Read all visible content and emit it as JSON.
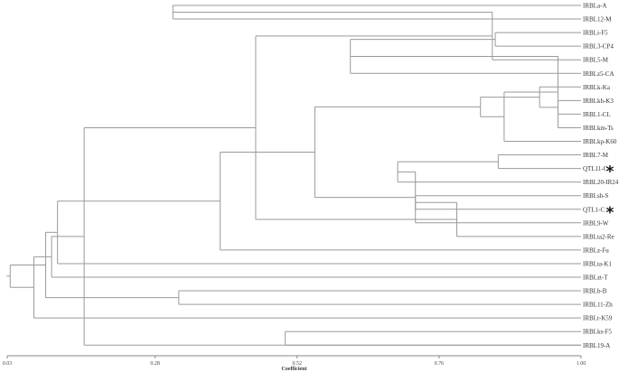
{
  "leaves": [
    "IRBLa-A",
    "IRBL12-M",
    "IRBLi-F5",
    "IRBL3-CP4",
    "IRBL5-M",
    "IRBLz5-CA",
    "IRBLk-Ka",
    "IRBLkh-K3",
    "IRBL1-CL",
    "IRBLkm-Ts",
    "IRBLkp-K60",
    "IRBL7-M",
    "QTL11-C",
    "IRBL20-IR24",
    "IRBLsh-S",
    "QTL1-C",
    "IRBL9-W",
    "IRBLta2-Re",
    "IRBLz-Fu",
    "IRBLta-K1",
    "IRBLzt-T",
    "IRBLb-B",
    "IRBL11-Zh",
    "IRBLt-K59",
    "IRBLks-F5",
    "IRBL19-A"
  ],
  "merges": [
    {
      "a": 0,
      "b": 1,
      "height": 0.31
    },
    {
      "a": 2,
      "b": 3,
      "height": 0.855
    },
    {
      "a": 26,
      "b": 4,
      "height": 0.85
    },
    {
      "a": 27,
      "b": 5,
      "height": 0.61
    },
    {
      "a": 7,
      "b": 8,
      "height": 0.961
    },
    {
      "a": 29,
      "b": 9,
      "height": 0.961
    },
    {
      "a": 6,
      "b": 30,
      "height": 0.93
    },
    {
      "a": 31,
      "b": 10,
      "height": 0.87
    },
    {
      "a": 11,
      "b": 12,
      "height": 0.86
    },
    {
      "a": 32,
      "b": 33,
      "height": 0.83
    },
    {
      "a": 34,
      "b": 13,
      "height": 0.69
    },
    {
      "a": 14,
      "b": 15,
      "height": 0.72
    },
    {
      "a": 36,
      "b": 16,
      "height": 0.72
    },
    {
      "a": 17,
      "b": 37,
      "height": 0.79
    },
    {
      "a": 35,
      "b": 38,
      "height": 0.55
    },
    {
      "a": 28,
      "b": 39,
      "height": 0.45
    },
    {
      "a": 40,
      "b": 18,
      "height": 0.39
    },
    {
      "a": 25,
      "b": 41,
      "height": 0.16
    },
    {
      "a": 42,
      "b": 19,
      "height": 0.115
    },
    {
      "a": 43,
      "b": 20,
      "height": 0.105
    },
    {
      "a": 21,
      "b": 22,
      "height": 0.32
    },
    {
      "a": 45,
      "b": 23,
      "height": 0.075
    },
    {
      "a": 44,
      "b": 46,
      "height": 0.095
    },
    {
      "a": 24,
      "b": 25,
      "height": 0.5
    },
    {
      "a": 47,
      "b": 48,
      "height": 0.035
    }
  ],
  "markers": [
    {
      "leaf": 12,
      "symbol": "*"
    },
    {
      "leaf": 15,
      "symbol": "*"
    }
  ],
  "axis": {
    "min": 0.03,
    "max": 1.0,
    "ticks": [
      {
        "value": 0.03,
        "label": "0.03"
      },
      {
        "value": 0.28,
        "label": "0.28"
      },
      {
        "value": 0.52,
        "label": "0.52"
      },
      {
        "value": 0.76,
        "label": "0.76"
      },
      {
        "value": 1.0,
        "label": "1.00"
      }
    ],
    "title": "Coefficient"
  }
}
